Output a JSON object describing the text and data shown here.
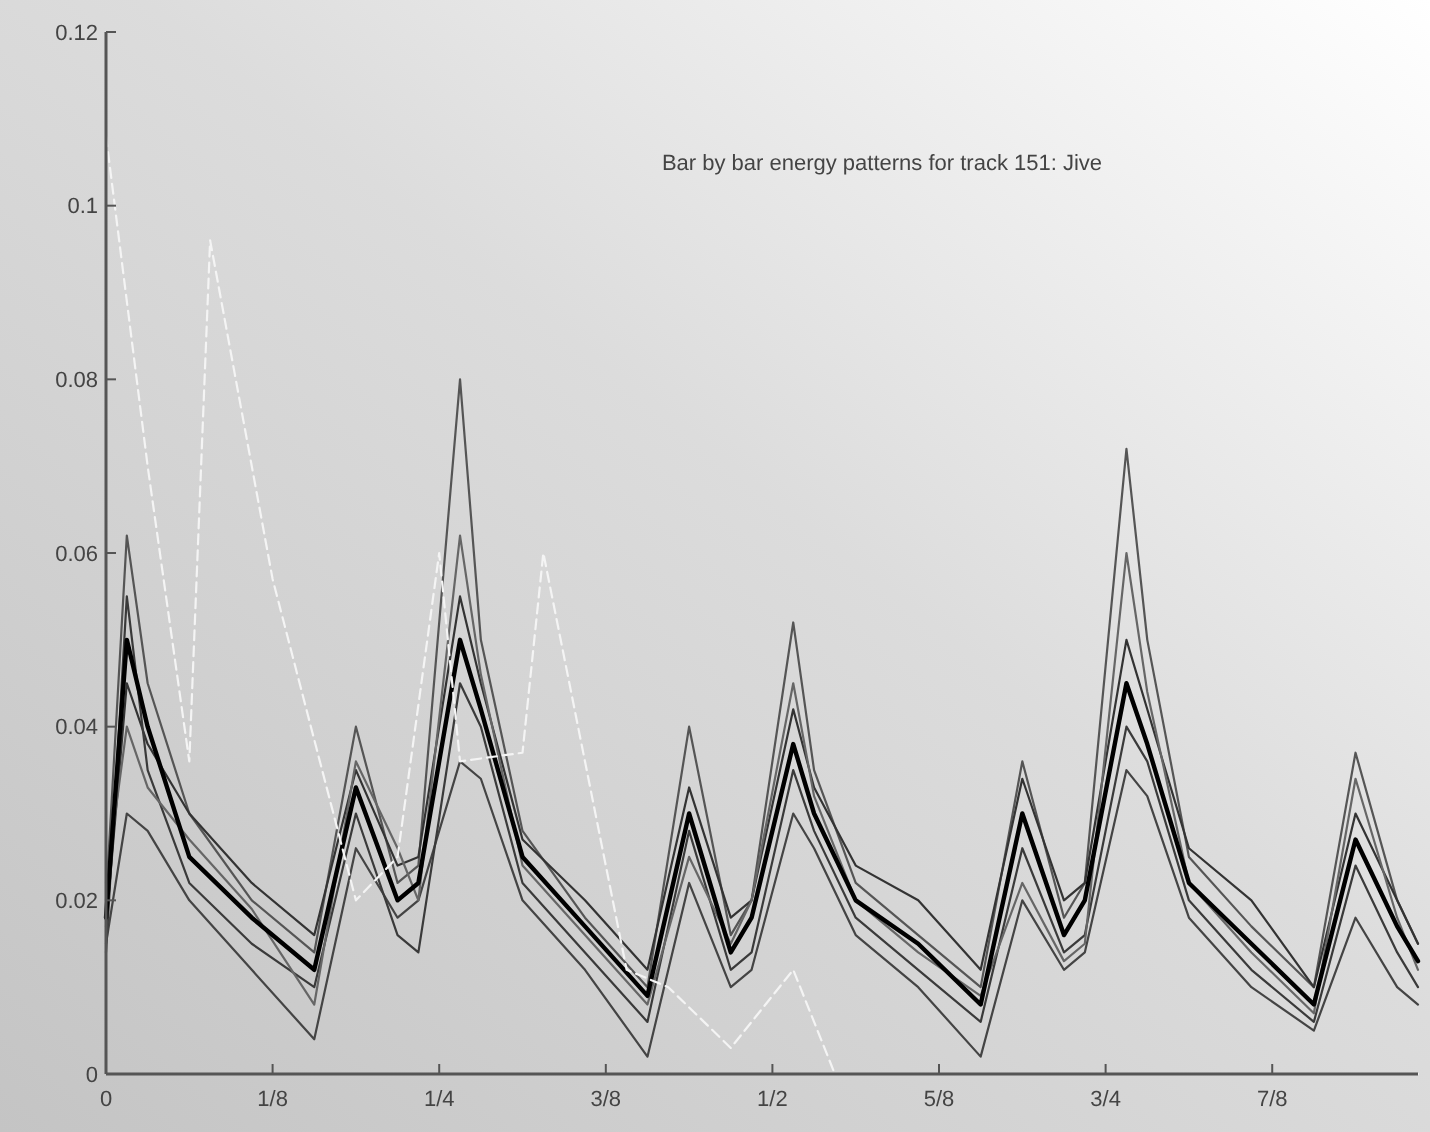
{
  "chart_data": {
    "type": "line",
    "title": "Bar by bar energy patterns for track 151: Jive",
    "x": [
      0,
      0.015625,
      0.03125,
      0.0625,
      0.109375,
      0.15625,
      0.1875,
      0.21875,
      0.234375,
      0.265625,
      0.28125,
      0.3125,
      0.359375,
      0.40625,
      0.4375,
      0.46875,
      0.484375,
      0.515625,
      0.53125,
      0.5625,
      0.609375,
      0.65625,
      0.6875,
      0.71875,
      0.734375,
      0.765625,
      0.78125,
      0.8125,
      0.859375,
      0.90625,
      0.9375,
      0.96875,
      0.984375
    ],
    "xlim": [
      0,
      0.984375
    ],
    "xticks": [
      0,
      {
        "value": 0.125,
        "label": "1/8"
      },
      {
        "value": 0.25,
        "label": "1/4"
      },
      {
        "value": 0.375,
        "label": "3/8"
      },
      {
        "value": 0.5,
        "label": "1/2"
      },
      {
        "value": 0.625,
        "label": "5/8"
      },
      {
        "value": 0.75,
        "label": "3/4"
      },
      {
        "value": 0.875,
        "label": "7/8"
      }
    ],
    "ylim": [
      0,
      0.12
    ],
    "yticks": [
      0,
      0.02,
      0.04,
      0.06,
      0.08,
      0.1,
      0.12
    ],
    "line_style": "solid",
    "marker": "none",
    "series": [
      {
        "color": "#555555",
        "values": [
          0.02,
          0.062,
          0.045,
          0.03,
          0.02,
          0.014,
          0.04,
          0.022,
          0.024,
          0.08,
          0.05,
          0.028,
          0.018,
          0.01,
          0.04,
          0.016,
          0.02,
          0.052,
          0.035,
          0.022,
          0.016,
          0.01,
          0.036,
          0.018,
          0.022,
          0.072,
          0.05,
          0.025,
          0.017,
          0.01,
          0.037,
          0.02,
          0.015
        ]
      },
      {
        "color": "#444444",
        "values": [
          0.015,
          0.03,
          0.028,
          0.02,
          0.012,
          0.004,
          0.026,
          0.018,
          0.02,
          0.036,
          0.034,
          0.02,
          0.012,
          0.002,
          0.022,
          0.01,
          0.012,
          0.03,
          0.026,
          0.016,
          0.01,
          0.002,
          0.02,
          0.012,
          0.014,
          0.035,
          0.032,
          0.018,
          0.01,
          0.005,
          0.018,
          0.01,
          0.008
        ]
      },
      {
        "color": "#333333",
        "values": [
          0.017,
          0.045,
          0.038,
          0.03,
          0.022,
          0.016,
          0.035,
          0.024,
          0.025,
          0.055,
          0.045,
          0.027,
          0.02,
          0.012,
          0.033,
          0.018,
          0.02,
          0.042,
          0.033,
          0.024,
          0.02,
          0.012,
          0.034,
          0.02,
          0.022,
          0.05,
          0.042,
          0.026,
          0.02,
          0.01,
          0.03,
          0.02,
          0.015
        ]
      },
      {
        "color": "#3a3a3a",
        "values": [
          0.014,
          0.055,
          0.035,
          0.022,
          0.015,
          0.01,
          0.03,
          0.016,
          0.014,
          0.045,
          0.04,
          0.022,
          0.014,
          0.006,
          0.028,
          0.012,
          0.014,
          0.035,
          0.028,
          0.018,
          0.012,
          0.006,
          0.026,
          0.014,
          0.016,
          0.04,
          0.036,
          0.02,
          0.012,
          0.006,
          0.024,
          0.014,
          0.01
        ]
      },
      {
        "color": "#666666",
        "values": [
          0.022,
          0.04,
          0.033,
          0.027,
          0.019,
          0.008,
          0.036,
          0.026,
          0.02,
          0.062,
          0.046,
          0.024,
          0.016,
          0.008,
          0.025,
          0.015,
          0.02,
          0.045,
          0.032,
          0.02,
          0.014,
          0.009,
          0.022,
          0.013,
          0.015,
          0.06,
          0.044,
          0.022,
          0.014,
          0.007,
          0.034,
          0.018,
          0.012
        ]
      },
      {
        "color": "#000000",
        "values": [
          0.018,
          0.05,
          0.04,
          0.025,
          0.018,
          0.012,
          0.033,
          0.02,
          0.022,
          0.05,
          0.042,
          0.025,
          0.017,
          0.009,
          0.03,
          0.014,
          0.018,
          0.038,
          0.03,
          0.02,
          0.015,
          0.008,
          0.03,
          0.016,
          0.02,
          0.045,
          0.038,
          0.022,
          0.015,
          0.008,
          0.027,
          0.017,
          0.013
        ]
      },
      {
        "color": "#f4f4f4",
        "line_style": "dashed",
        "x": [
          0,
          0.03125,
          0.0625,
          0.078125,
          0.125,
          0.1875,
          0.21875,
          0.25,
          0.265625,
          0.3125,
          0.328125,
          0.390625,
          0.421875,
          0.46875,
          0.515625,
          0.546875,
          0.984375
        ],
        "values": [
          0.108,
          0.07,
          0.036,
          0.096,
          0.057,
          0.02,
          0.025,
          0.06,
          0.036,
          0.037,
          0.06,
          0.012,
          0.01,
          0.003,
          0.012,
          0,
          0
        ]
      }
    ]
  }
}
